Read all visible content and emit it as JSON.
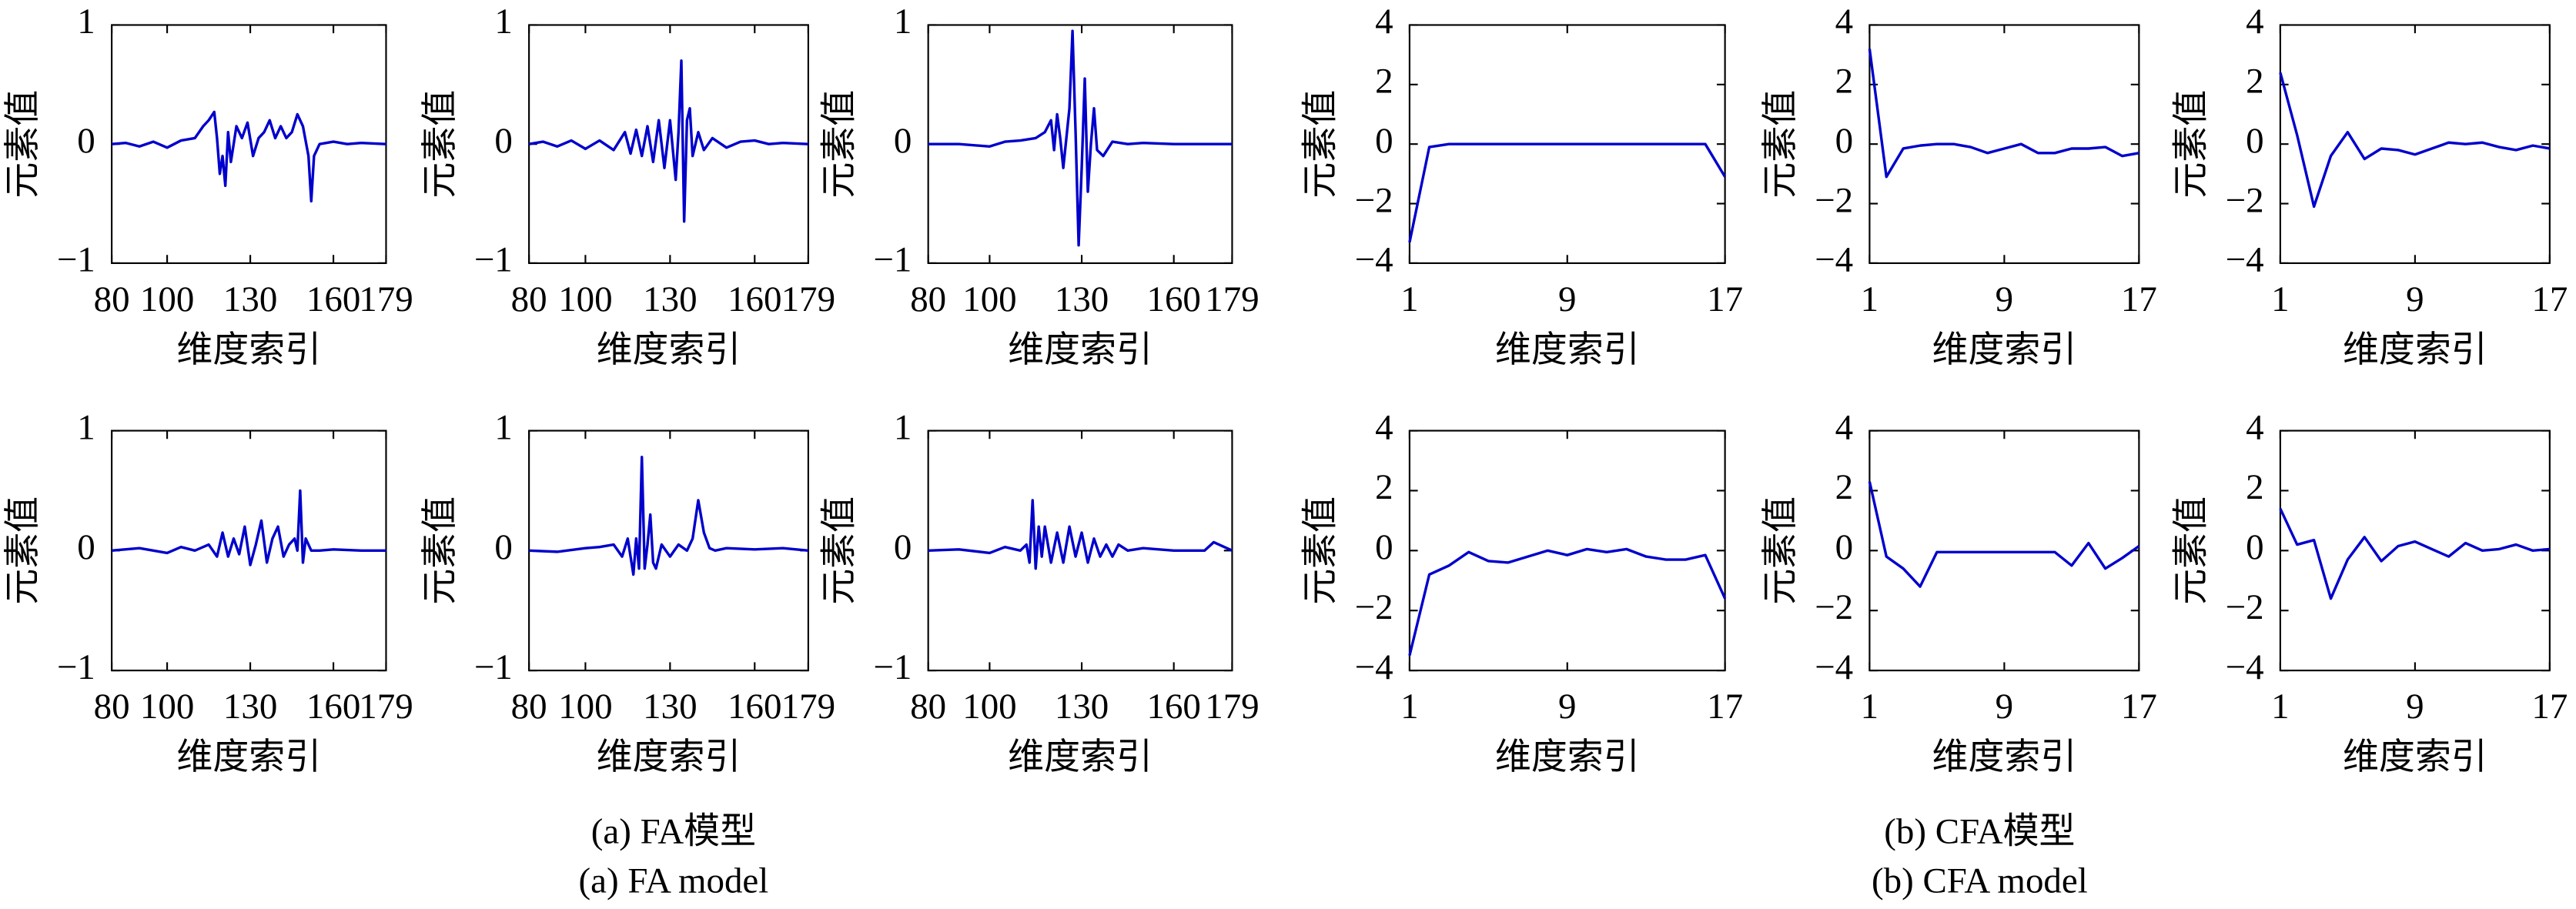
{
  "chart_data": [
    {
      "type": "line",
      "xlabel": "维度索引",
      "ylabel": "元素值",
      "color": "#0000cc",
      "x": [
        80,
        85,
        90,
        95,
        100,
        105,
        110,
        113,
        115,
        117,
        118,
        119,
        120,
        121,
        122,
        123,
        125,
        127,
        129,
        131,
        133,
        135,
        137,
        139,
        141,
        143,
        145,
        147,
        149,
        151,
        152,
        153,
        155,
        160,
        165,
        170,
        179
      ],
      "values": [
        0,
        0.01,
        -0.02,
        0.02,
        -0.03,
        0.03,
        0.05,
        0.15,
        0.2,
        0.27,
        0.05,
        -0.25,
        -0.1,
        -0.35,
        0.1,
        -0.15,
        0.15,
        0.05,
        0.18,
        -0.1,
        0.05,
        0.1,
        0.2,
        0.05,
        0.15,
        0.05,
        0.1,
        0.25,
        0.15,
        -0.1,
        -0.48,
        -0.1,
        0,
        0.02,
        0,
        0.01,
        0
      ],
      "xlim": [
        80,
        179
      ],
      "xticks": [
        80,
        100,
        130,
        160,
        179
      ],
      "ylim": [
        -1,
        1
      ],
      "yticks": [
        {
          "value": -1,
          "label": "−1"
        },
        0,
        1
      ]
    },
    {
      "type": "line",
      "xlabel": "维度索引",
      "ylabel": "元素值",
      "color": "#0000cc",
      "x": [
        80,
        85,
        90,
        95,
        100,
        105,
        110,
        114,
        116,
        118,
        120,
        122,
        124,
        126,
        128,
        130,
        132,
        133,
        134,
        135,
        136,
        137,
        138,
        140,
        142,
        145,
        150,
        155,
        160,
        165,
        170,
        179
      ],
      "values": [
        0,
        0.02,
        -0.02,
        0.03,
        -0.04,
        0.03,
        -0.05,
        0.1,
        -0.08,
        0.12,
        -0.1,
        0.15,
        -0.15,
        0.2,
        -0.2,
        0.2,
        -0.3,
        0.1,
        0.7,
        -0.65,
        0.2,
        0.3,
        -0.1,
        0.1,
        -0.05,
        0.05,
        -0.03,
        0.02,
        0.03,
        0,
        0.01,
        0
      ],
      "xlim": [
        80,
        179
      ],
      "xticks": [
        80,
        100,
        130,
        160,
        179
      ],
      "ylim": [
        -1,
        1
      ],
      "yticks": [
        {
          "value": -1,
          "label": "−1"
        },
        0,
        1
      ]
    },
    {
      "type": "line",
      "xlabel": "维度索引",
      "ylabel": "元素值",
      "color": "#0000cc",
      "x": [
        80,
        90,
        100,
        105,
        110,
        115,
        118,
        120,
        121,
        122,
        123,
        124,
        126,
        127,
        128,
        129,
        130,
        131,
        132,
        133,
        134,
        135,
        137,
        140,
        145,
        150,
        160,
        170,
        179
      ],
      "values": [
        0,
        0,
        -0.02,
        0.02,
        0.03,
        0.05,
        0.1,
        0.2,
        -0.05,
        0.25,
        0.05,
        -0.2,
        0.3,
        0.95,
        0.1,
        -0.85,
        -0.2,
        0.55,
        -0.4,
        0,
        0.3,
        -0.05,
        -0.1,
        0.02,
        0,
        0.01,
        0,
        0,
        0
      ],
      "xlim": [
        80,
        179
      ],
      "xticks": [
        80,
        100,
        130,
        160,
        179
      ],
      "ylim": [
        -1,
        1
      ],
      "yticks": [
        {
          "value": -1,
          "label": "−1"
        },
        0,
        1
      ]
    },
    {
      "type": "line",
      "xlabel": "维度索引",
      "ylabel": "元素值",
      "color": "#0000cc",
      "x": [
        1,
        2,
        3,
        4,
        5,
        6,
        7,
        8,
        9,
        10,
        11,
        12,
        13,
        14,
        15,
        16,
        17
      ],
      "values": [
        -3.3,
        -0.1,
        0,
        0,
        0,
        0,
        0,
        0,
        0,
        0,
        0,
        0,
        0,
        0,
        0,
        0,
        -1.1
      ],
      "xlim": [
        1,
        17
      ],
      "xticks": [
        1,
        9,
        17
      ],
      "ylim": [
        -4,
        4
      ],
      "yticks": [
        {
          "value": -4,
          "label": "−4"
        },
        {
          "value": -2,
          "label": "−2"
        },
        0,
        2,
        4
      ]
    },
    {
      "type": "line",
      "xlabel": "维度索引",
      "ylabel": "元素值",
      "color": "#0000cc",
      "x": [
        1,
        2,
        3,
        4,
        5,
        6,
        7,
        8,
        9,
        10,
        11,
        12,
        13,
        14,
        15,
        16,
        17
      ],
      "values": [
        3.2,
        -1.1,
        -0.15,
        -0.05,
        0,
        0,
        -0.1,
        -0.3,
        -0.15,
        0,
        -0.3,
        -0.3,
        -0.15,
        -0.15,
        -0.1,
        -0.4,
        -0.3
      ],
      "xlim": [
        1,
        17
      ],
      "xticks": [
        1,
        9,
        17
      ],
      "ylim": [
        -4,
        4
      ],
      "yticks": [
        {
          "value": -4,
          "label": "−4"
        },
        {
          "value": -2,
          "label": "−2"
        },
        0,
        2,
        4
      ]
    },
    {
      "type": "line",
      "xlabel": "维度索引",
      "ylabel": "元素值",
      "color": "#0000cc",
      "x": [
        1,
        2,
        3,
        4,
        5,
        6,
        7,
        8,
        9,
        10,
        11,
        12,
        13,
        14,
        15,
        16,
        17
      ],
      "values": [
        2.4,
        0.3,
        -2.1,
        -0.4,
        0.4,
        -0.5,
        -0.15,
        -0.2,
        -0.35,
        -0.15,
        0.05,
        0,
        0.05,
        -0.1,
        -0.2,
        -0.05,
        -0.15
      ],
      "xlim": [
        1,
        17
      ],
      "xticks": [
        1,
        9,
        17
      ],
      "ylim": [
        -4,
        4
      ],
      "yticks": [
        {
          "value": -4,
          "label": "−4"
        },
        {
          "value": -2,
          "label": "−2"
        },
        0,
        2,
        4
      ]
    },
    {
      "type": "line",
      "xlabel": "维度索引",
      "ylabel": "元素值",
      "color": "#0000cc",
      "x": [
        80,
        90,
        100,
        105,
        110,
        115,
        118,
        120,
        122,
        124,
        126,
        128,
        130,
        132,
        134,
        136,
        138,
        140,
        142,
        144,
        146,
        147,
        148,
        149,
        150,
        152,
        155,
        160,
        170,
        179
      ],
      "values": [
        0,
        0.02,
        -0.02,
        0.03,
        0,
        0.05,
        -0.05,
        0.15,
        -0.05,
        0.1,
        -0.03,
        0.2,
        -0.12,
        0.05,
        0.25,
        -0.1,
        0.1,
        0.2,
        -0.05,
        0.05,
        0.1,
        0,
        0.5,
        -0.1,
        0.1,
        0,
        0,
        0.01,
        0,
        0
      ],
      "xlim": [
        80,
        179
      ],
      "xticks": [
        80,
        100,
        130,
        160,
        179
      ],
      "ylim": [
        -1,
        1
      ],
      "yticks": [
        {
          "value": -1,
          "label": "−1"
        },
        0,
        1
      ]
    },
    {
      "type": "line",
      "xlabel": "维度索引",
      "ylabel": "元素值",
      "color": "#0000cc",
      "x": [
        80,
        90,
        100,
        105,
        110,
        113,
        115,
        117,
        118,
        119,
        120,
        121,
        122,
        123,
        124,
        125,
        127,
        130,
        133,
        136,
        138,
        140,
        142,
        144,
        146,
        150,
        160,
        170,
        179
      ],
      "values": [
        0,
        -0.01,
        0.02,
        0.03,
        0.05,
        -0.05,
        0.1,
        -0.2,
        0.1,
        -0.15,
        0.78,
        -0.15,
        0.05,
        0.3,
        -0.1,
        -0.15,
        0.05,
        -0.05,
        0.05,
        0,
        0.1,
        0.42,
        0.15,
        0.02,
        0,
        0.02,
        0.01,
        0.02,
        0
      ],
      "xlim": [
        80,
        179
      ],
      "xticks": [
        80,
        100,
        130,
        160,
        179
      ],
      "ylim": [
        -1,
        1
      ],
      "yticks": [
        {
          "value": -1,
          "label": "−1"
        },
        0,
        1
      ]
    },
    {
      "type": "line",
      "xlabel": "维度索引",
      "ylabel": "元素值",
      "color": "#0000cc",
      "x": [
        80,
        90,
        100,
        105,
        110,
        112,
        113,
        114,
        115,
        116,
        117,
        118,
        120,
        122,
        124,
        126,
        128,
        130,
        132,
        134,
        136,
        138,
        140,
        142,
        145,
        150,
        160,
        170,
        173,
        179
      ],
      "values": [
        0,
        0.01,
        -0.02,
        0.03,
        0,
        0.05,
        -0.1,
        0.42,
        -0.15,
        0.2,
        -0.05,
        0.2,
        -0.1,
        0.15,
        -0.1,
        0.2,
        -0.05,
        0.15,
        -0.1,
        0.1,
        -0.05,
        0.05,
        -0.05,
        0.05,
        0,
        0.02,
        0,
        0,
        0.07,
        0
      ],
      "xlim": [
        80,
        179
      ],
      "xticks": [
        80,
        100,
        130,
        160,
        179
      ],
      "ylim": [
        -1,
        1
      ],
      "yticks": [
        {
          "value": -1,
          "label": "−1"
        },
        0,
        1
      ]
    },
    {
      "type": "line",
      "xlabel": "维度索引",
      "ylabel": "元素值",
      "color": "#0000cc",
      "x": [
        1,
        2,
        3,
        4,
        5,
        6,
        7,
        8,
        9,
        10,
        11,
        12,
        13,
        14,
        15,
        16,
        17
      ],
      "values": [
        -3.5,
        -0.8,
        -0.5,
        -0.05,
        -0.35,
        -0.4,
        -0.2,
        0,
        -0.15,
        0.05,
        -0.05,
        0.05,
        -0.2,
        -0.3,
        -0.3,
        -0.15,
        -1.6
      ],
      "xlim": [
        1,
        17
      ],
      "xticks": [
        1,
        9,
        17
      ],
      "ylim": [
        -4,
        4
      ],
      "yticks": [
        {
          "value": -4,
          "label": "−4"
        },
        {
          "value": -2,
          "label": "−2"
        },
        0,
        2,
        4
      ]
    },
    {
      "type": "line",
      "xlabel": "维度索引",
      "ylabel": "元素值",
      "color": "#0000cc",
      "x": [
        1,
        2,
        3,
        4,
        5,
        6,
        7,
        8,
        9,
        10,
        11,
        12,
        13,
        14,
        15,
        16,
        17
      ],
      "values": [
        2.3,
        -0.2,
        -0.6,
        -1.2,
        -0.05,
        -0.05,
        -0.05,
        -0.05,
        -0.05,
        -0.05,
        -0.05,
        -0.05,
        -0.5,
        0.25,
        -0.6,
        -0.25,
        0.15
      ],
      "xlim": [
        1,
        17
      ],
      "xticks": [
        1,
        9,
        17
      ],
      "ylim": [
        -4,
        4
      ],
      "yticks": [
        {
          "value": -4,
          "label": "−4"
        },
        {
          "value": -2,
          "label": "−2"
        },
        0,
        2,
        4
      ]
    },
    {
      "type": "line",
      "xlabel": "维度索引",
      "ylabel": "元素值",
      "color": "#0000cc",
      "x": [
        1,
        2,
        3,
        4,
        5,
        6,
        7,
        8,
        9,
        10,
        11,
        12,
        13,
        14,
        15,
        16,
        17
      ],
      "values": [
        1.4,
        0.2,
        0.35,
        -1.6,
        -0.3,
        0.45,
        -0.35,
        0.15,
        0.3,
        0.05,
        -0.2,
        0.25,
        0,
        0.05,
        0.2,
        0,
        0.05
      ],
      "xlim": [
        1,
        17
      ],
      "xticks": [
        1,
        9,
        17
      ],
      "ylim": [
        -4,
        4
      ],
      "yticks": [
        {
          "value": -4,
          "label": "−4"
        },
        {
          "value": -2,
          "label": "−2"
        },
        0,
        2,
        4
      ]
    }
  ],
  "captions": {
    "fa_cn": "(a) FA模型",
    "fa_en": "(a) FA model",
    "cfa_cn": "(b) CFA模型",
    "cfa_en": "(b) CFA model"
  }
}
